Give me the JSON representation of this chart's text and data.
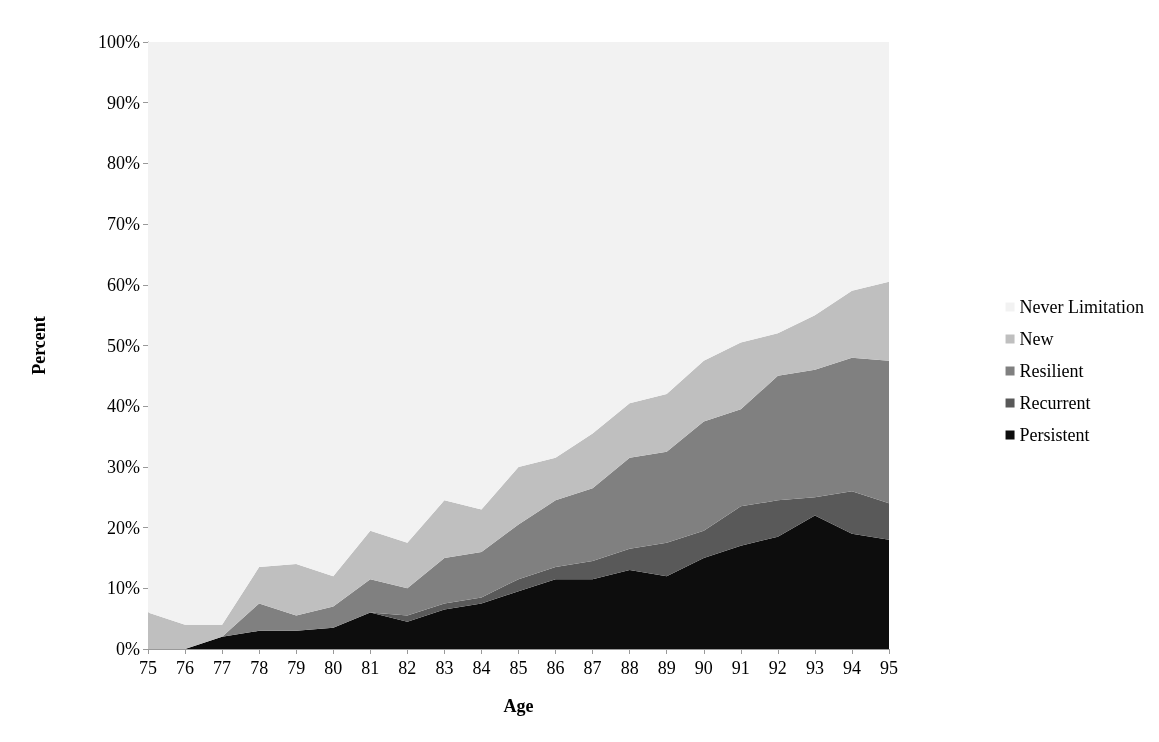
{
  "chart_data": {
    "type": "area",
    "stacked": true,
    "xlabel": "Age",
    "ylabel": "Percent",
    "categories": [
      "75",
      "76",
      "77",
      "78",
      "79",
      "80",
      "81",
      "82",
      "83",
      "84",
      "85",
      "86",
      "87",
      "88",
      "89",
      "90",
      "91",
      "92",
      "93",
      "94",
      "95"
    ],
    "series": [
      {
        "name": "Persistent",
        "color": "#0d0d0d",
        "values": [
          0,
          0,
          2,
          3,
          3,
          3.5,
          6,
          4.5,
          6.5,
          7.5,
          9.5,
          11.5,
          11.5,
          13,
          12,
          15,
          17,
          18.5,
          22,
          19,
          18
        ]
      },
      {
        "name": "Recurrent",
        "color": "#595959",
        "values": [
          0,
          0,
          0,
          0,
          0,
          0,
          0,
          1,
          1,
          1,
          2,
          2,
          3,
          3.5,
          5.5,
          4.5,
          6.5,
          6,
          3,
          7,
          6
        ]
      },
      {
        "name": "Resilient",
        "color": "#808080",
        "values": [
          0,
          0,
          0,
          4.5,
          2.5,
          3.5,
          5.5,
          4.5,
          7.5,
          7.5,
          9,
          11,
          12,
          15,
          15,
          18,
          16,
          20.5,
          21,
          22,
          23.5
        ]
      },
      {
        "name": "New",
        "color": "#bfbfbf",
        "values": [
          6,
          4,
          2,
          6,
          8.5,
          5,
          8,
          7.5,
          9.5,
          7,
          9.5,
          7,
          9,
          9,
          9.5,
          10,
          11,
          7,
          9,
          11,
          13
        ]
      },
      {
        "name": "Never Limitation",
        "color": "#f2f2f2",
        "values": [
          94,
          96,
          96,
          86.5,
          86,
          88,
          80.5,
          82.5,
          75.5,
          77,
          70,
          68.5,
          64.5,
          59.5,
          58,
          52.5,
          49.5,
          48,
          45,
          41,
          39.5
        ]
      }
    ],
    "ylim": [
      0,
      100
    ],
    "yticks": [
      {
        "value": 0,
        "label": "0%"
      },
      {
        "value": 10,
        "label": "10%"
      },
      {
        "value": 20,
        "label": "20%"
      },
      {
        "value": 30,
        "label": "30%"
      },
      {
        "value": 40,
        "label": "40%"
      },
      {
        "value": 50,
        "label": "50%"
      },
      {
        "value": 60,
        "label": "60%"
      },
      {
        "value": 70,
        "label": "70%"
      },
      {
        "value": 80,
        "label": "80%"
      },
      {
        "value": 90,
        "label": "90%"
      },
      {
        "value": 100,
        "label": "100%"
      }
    ],
    "grid": false,
    "legend": "right"
  }
}
